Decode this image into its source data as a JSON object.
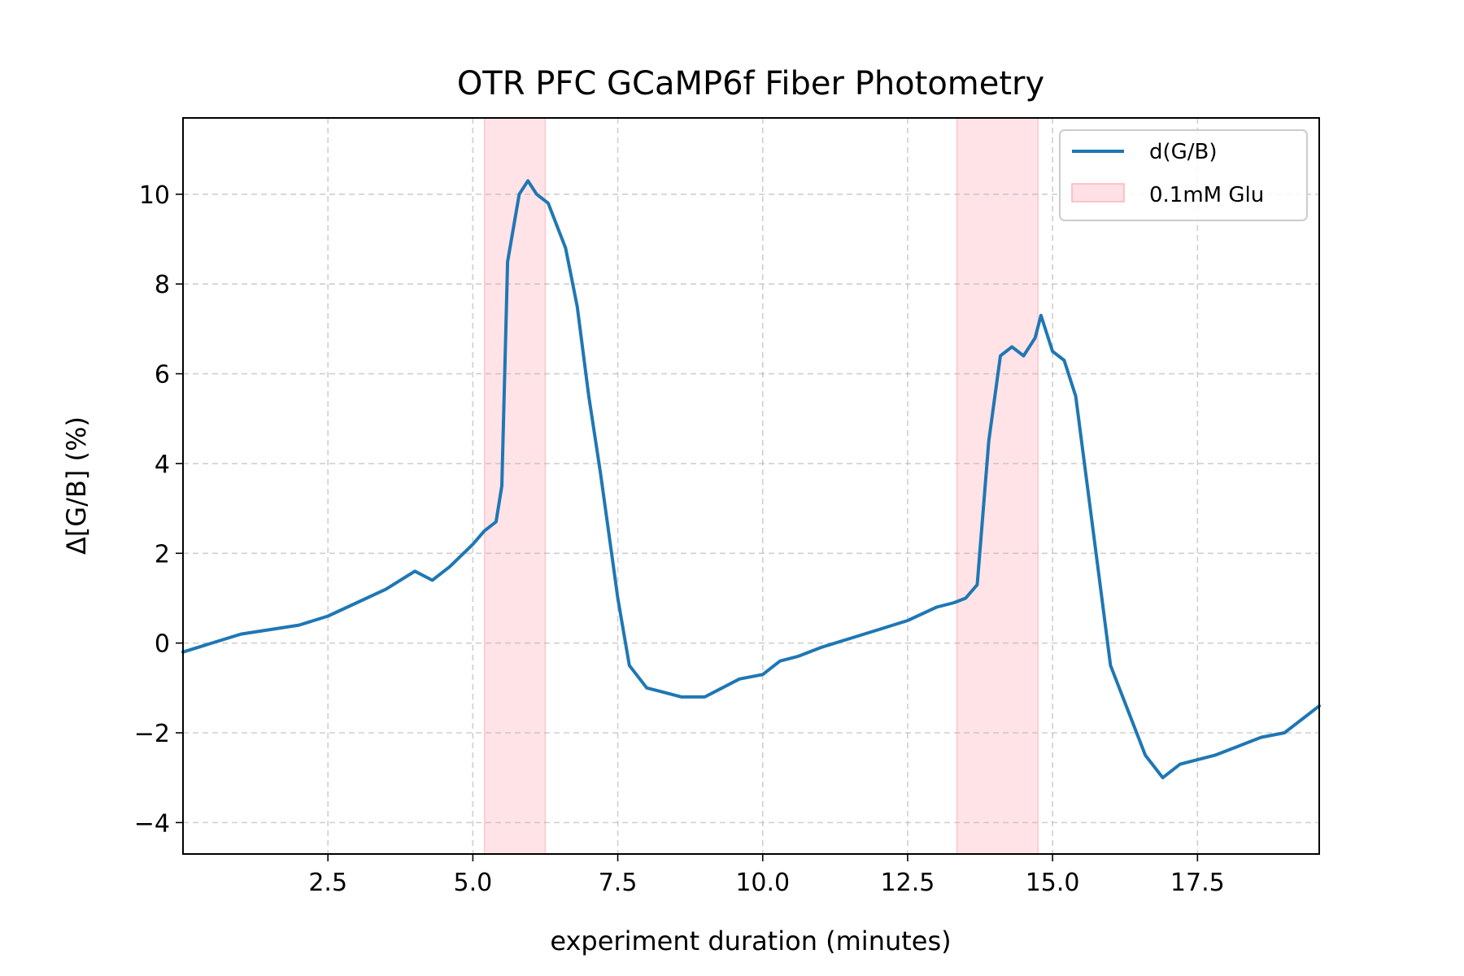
{
  "chart_data": {
    "type": "line",
    "title": "OTR PFC GCaMP6f Fiber Photometry",
    "xlabel": "experiment duration (minutes)",
    "ylabel": "Δ[G/B] (%)",
    "xlim": [
      0,
      19.6
    ],
    "ylim": [
      -4.7,
      11.7
    ],
    "x_ticks": [
      2.5,
      5.0,
      7.5,
      10.0,
      12.5,
      15.0,
      17.5
    ],
    "x_tick_labels": [
      "2.5",
      "5.0",
      "7.5",
      "10.0",
      "12.5",
      "15.0",
      "17.5"
    ],
    "y_ticks": [
      -4,
      -2,
      0,
      2,
      4,
      6,
      8,
      10
    ],
    "y_tick_labels": [
      "−4",
      "−2",
      "0",
      "2",
      "4",
      "6",
      "8",
      "10"
    ],
    "grid": true,
    "legend_position": "top-right",
    "series": [
      {
        "name": "d(G/B)",
        "color": "#1f77b4",
        "x": [
          0.0,
          0.5,
          1.0,
          1.5,
          2.0,
          2.5,
          3.0,
          3.5,
          4.0,
          4.3,
          4.6,
          5.0,
          5.2,
          5.4,
          5.5,
          5.6,
          5.8,
          5.95,
          6.1,
          6.3,
          6.6,
          6.8,
          7.0,
          7.2,
          7.5,
          7.7,
          8.0,
          8.3,
          8.6,
          9.0,
          9.3,
          9.6,
          10.0,
          10.3,
          10.6,
          11.0,
          11.5,
          12.0,
          12.5,
          13.0,
          13.3,
          13.5,
          13.7,
          13.9,
          14.1,
          14.3,
          14.5,
          14.7,
          14.8,
          15.0,
          15.2,
          15.4,
          15.6,
          15.8,
          16.0,
          16.3,
          16.6,
          16.9,
          17.2,
          17.5,
          17.8,
          18.2,
          18.6,
          19.0,
          19.3,
          19.6
        ],
        "y": [
          -0.2,
          0.0,
          0.2,
          0.3,
          0.4,
          0.6,
          0.9,
          1.2,
          1.6,
          1.4,
          1.7,
          2.2,
          2.5,
          2.7,
          3.5,
          8.5,
          10.0,
          10.3,
          10.0,
          9.8,
          8.8,
          7.5,
          5.5,
          3.8,
          1.0,
          -0.5,
          -1.0,
          -1.1,
          -1.2,
          -1.2,
          -1.0,
          -0.8,
          -0.7,
          -0.4,
          -0.3,
          -0.1,
          0.1,
          0.3,
          0.5,
          0.8,
          0.9,
          1.0,
          1.3,
          4.5,
          6.4,
          6.6,
          6.4,
          6.8,
          7.3,
          6.5,
          6.3,
          5.5,
          3.5,
          1.5,
          -0.5,
          -1.5,
          -2.5,
          -3.0,
          -2.7,
          -2.6,
          -2.5,
          -2.3,
          -2.1,
          -2.0,
          -1.7,
          -1.4
        ]
      }
    ],
    "shaded_regions": [
      {
        "name": "0.1mM Glu",
        "color": "#ff9aa8",
        "x_start": 5.2,
        "x_end": 6.25
      },
      {
        "name": "0.1mM Glu",
        "color": "#ff9aa8",
        "x_start": 13.35,
        "x_end": 14.75
      }
    ],
    "legend": [
      {
        "label": "d(G/B)",
        "kind": "line",
        "color": "#1f77b4"
      },
      {
        "label": "0.1mM Glu",
        "kind": "patch",
        "color": "#ff9aa8"
      }
    ]
  }
}
